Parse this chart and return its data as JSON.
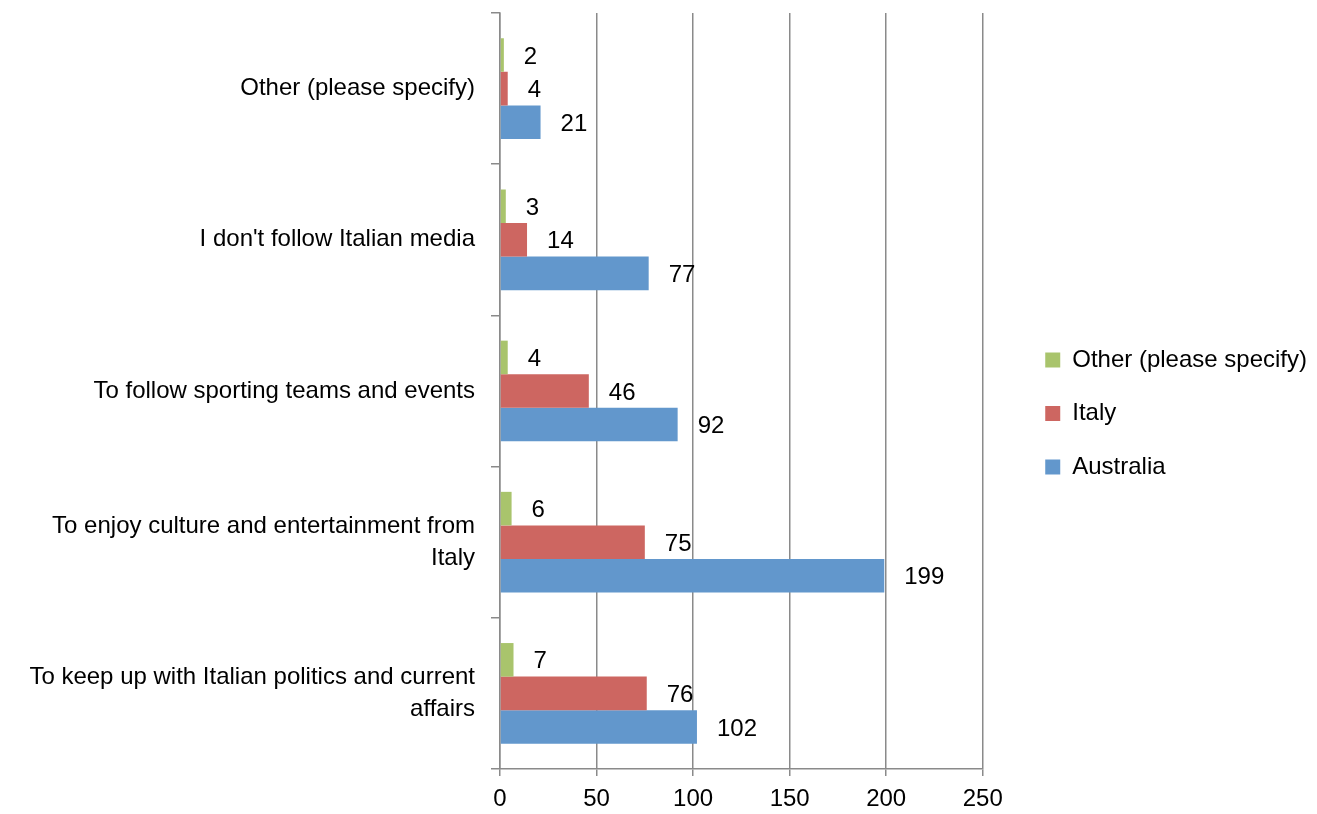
{
  "chart_data": {
    "type": "bar",
    "orientation": "horizontal",
    "categories": [
      "Other (please specify)",
      "I don't follow Italian media",
      "To follow sporting teams and events",
      "To enjoy culture and entertainment from Italy",
      "To keep up with Italian politics and current affairs"
    ],
    "series": [
      {
        "name": "Other (please specify)",
        "color": "#a9c46c",
        "values": [
          2,
          3,
          4,
          6,
          7
        ]
      },
      {
        "name": "Italy",
        "color": "#cd6661",
        "values": [
          4,
          14,
          46,
          75,
          76
        ]
      },
      {
        "name": "Australia",
        "color": "#6297cc",
        "values": [
          21,
          77,
          92,
          199,
          102
        ]
      }
    ],
    "xlim": [
      0,
      250
    ],
    "xticks": [
      0,
      50,
      100,
      150,
      200,
      250
    ],
    "grid": "x",
    "legend": "right",
    "data_labels": true
  }
}
